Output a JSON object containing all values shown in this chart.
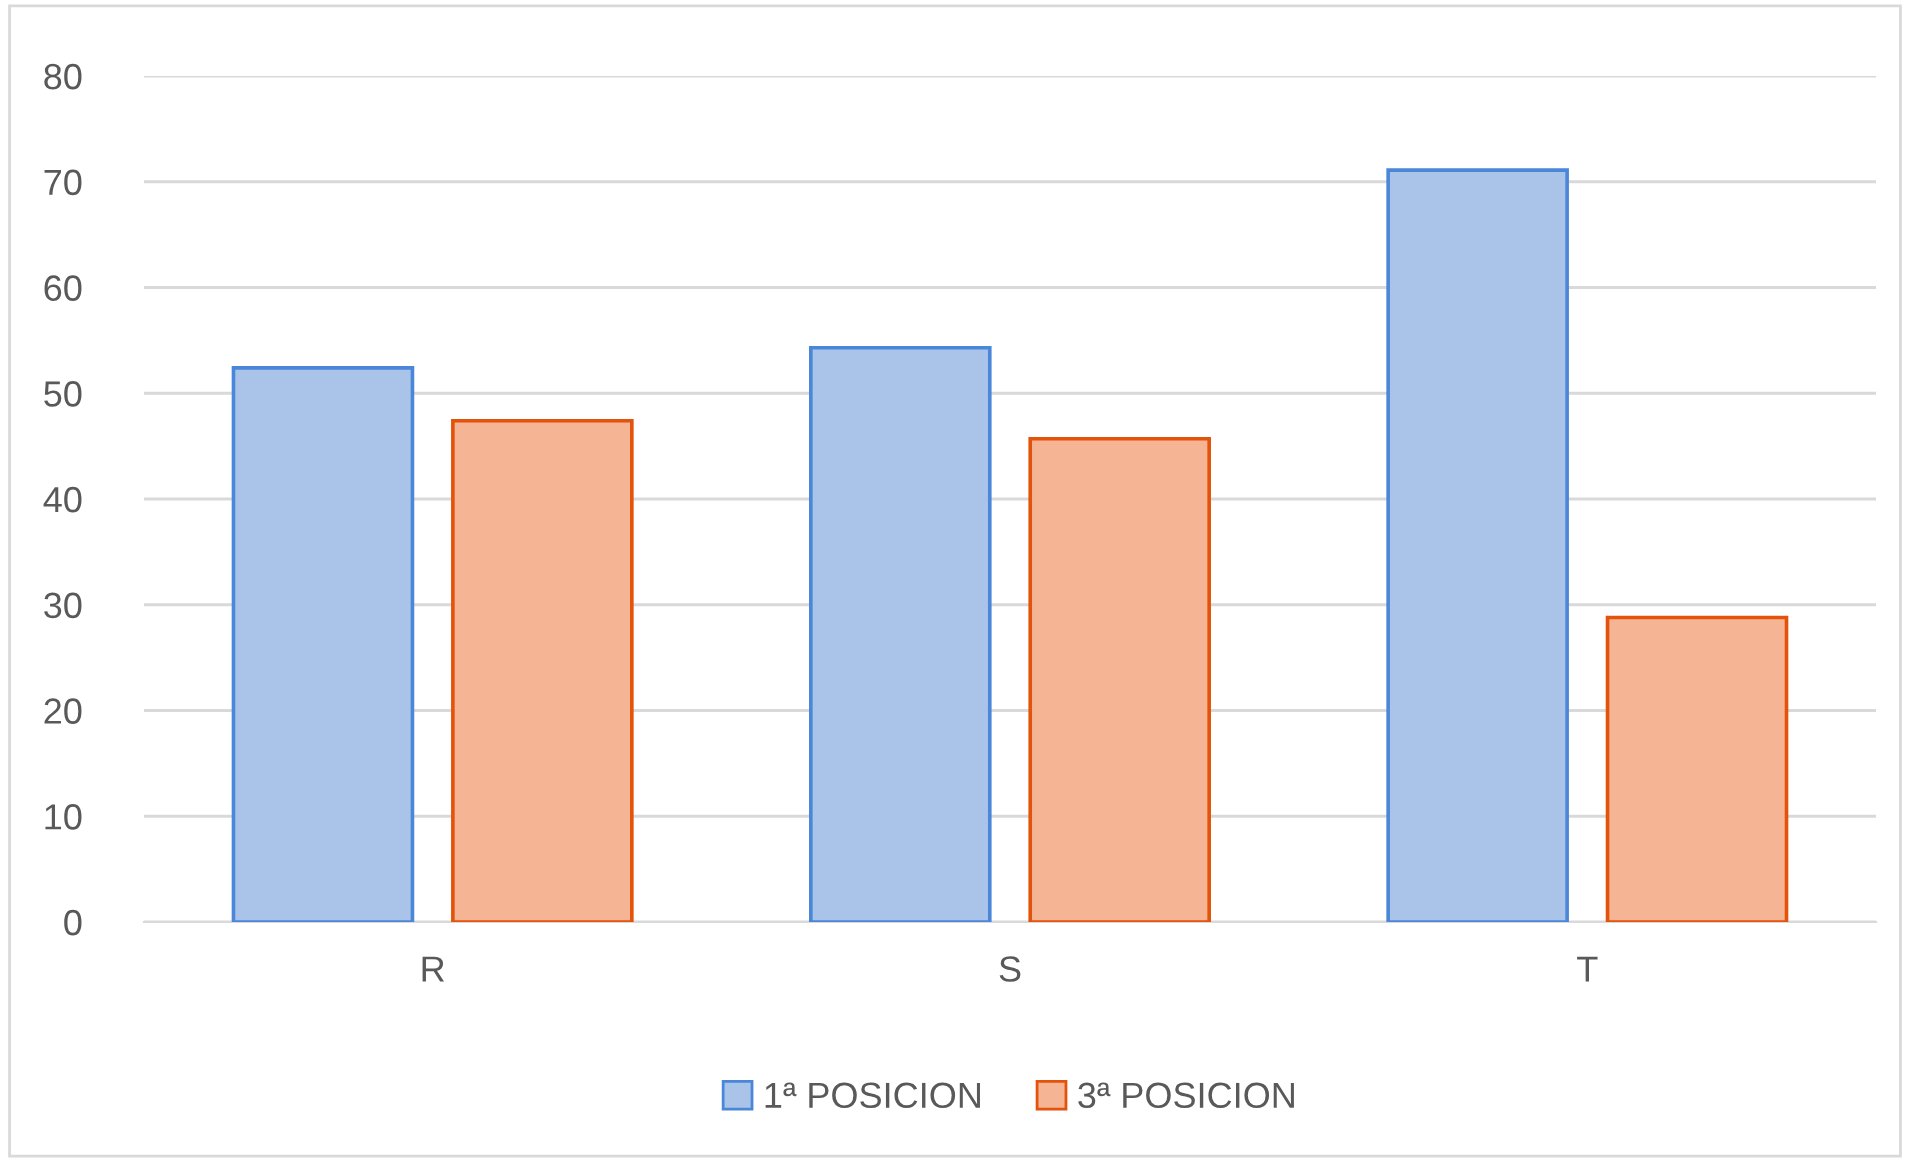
{
  "chart_data": {
    "type": "bar",
    "categories": [
      "R",
      "S",
      "T"
    ],
    "series": [
      {
        "name": "1ª POSICION",
        "color": "#a9c4e8",
        "values": [
          52.4,
          54.3,
          71.1
        ]
      },
      {
        "name": "3ª POSICION",
        "color": "#f5b494",
        "values": [
          47.4,
          45.7,
          28.8
        ]
      }
    ],
    "ylim": [
      0,
      80
    ],
    "yticks": [
      0,
      10,
      20,
      30,
      40,
      50,
      60,
      70,
      80
    ],
    "grid": "y",
    "legend": "bottom"
  }
}
